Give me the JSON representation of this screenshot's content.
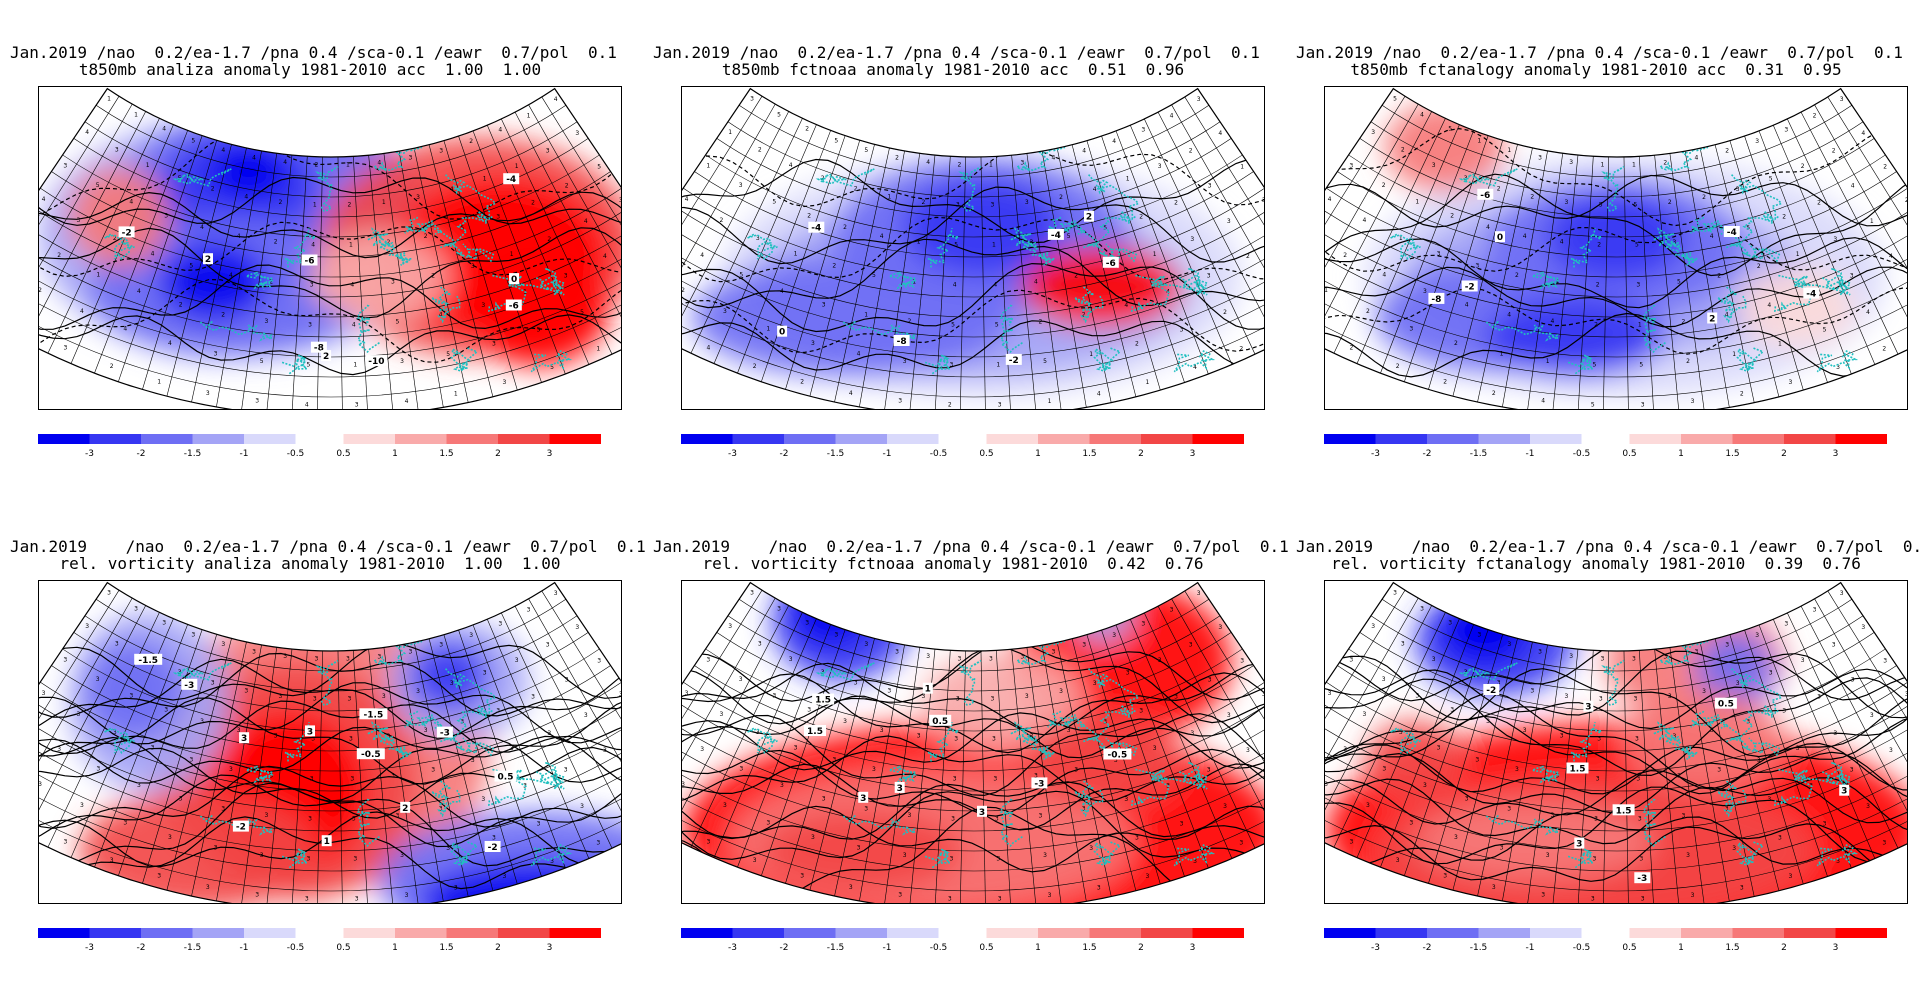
{
  "panels": [
    {
      "line1": "Jan.2019 /nao  0.2/ea-1.7 /pna 0.4 /sca-0.1 /eawr  0.7/pol  0.1",
      "line2": "t850mb analiza anomaly 1981-2010 acc  1.00  1.00",
      "kind": "t850",
      "variant": "a"
    },
    {
      "line1": "Jan.2019 /nao  0.2/ea-1.7 /pna 0.4 /sca-0.1 /eawr  0.7/pol  0.1",
      "line2": "t850mb fctnoaa anomaly 1981-2010 acc  0.51  0.96",
      "kind": "t850",
      "variant": "b"
    },
    {
      "line1": "Jan.2019 /nao  0.2/ea-1.7 /pna 0.4 /sca-0.1 /eawr  0.7/pol  0.1",
      "line2": "t850mb fctanalogy anomaly 1981-2010 acc  0.31  0.95",
      "kind": "t850",
      "variant": "c"
    },
    {
      "line1": "Jan.2019    /nao  0.2/ea-1.7 /pna 0.4 /sca-0.1 /eawr  0.7/pol  0.1",
      "line2": "rel. vorticity analiza anomaly 1981-2010  1.00  1.00",
      "kind": "vort",
      "variant": "a"
    },
    {
      "line1": "Jan.2019    /nao  0.2/ea-1.7 /pna 0.4 /sca-0.1 /eawr  0.7/pol  0.1",
      "line2": "rel. vorticity fctnoaa anomaly 1981-2010  0.42  0.76",
      "kind": "vort",
      "variant": "b"
    },
    {
      "line1": "Jan.2019    /nao  0.2/ea-1.7 /pna 0.4 /sca-0.1 /eawr  0.7/pol  0.1",
      "line2": "rel. vorticity fctanalogy anomaly 1981-2010  0.39  0.76",
      "kind": "vort",
      "variant": "c"
    }
  ],
  "colorbar": {
    "labels": [
      "-3",
      "-2",
      "-1.5",
      "-1",
      "-0.5",
      "0.5",
      "1",
      "1.5",
      "2",
      "3"
    ],
    "neg_colors": [
      "#0000f0",
      "#3636f2",
      "#6e6ef4",
      "#a4a4f6",
      "#d9d9fb"
    ],
    "pos_colors": [
      "#fcdada",
      "#f9aaaa",
      "#f67878",
      "#f24646",
      "#ff0000"
    ]
  },
  "contour_labels": {
    "t850": {
      "a": [
        "-10",
        "-8",
        "-6",
        "-4",
        "-2",
        "-6",
        "2",
        "0",
        "2"
      ],
      "b": [
        "-8",
        "-6",
        "-4",
        "-2",
        "0",
        "2",
        "-4"
      ],
      "c": [
        "-8",
        "-6",
        "-4",
        "-2",
        "0",
        "2",
        "-4"
      ]
    },
    "vort": {
      "a": [
        "0.5",
        "1",
        "3",
        "-3",
        "-2",
        "-1.5",
        "-3",
        "-2",
        "-1.5",
        "-0.5",
        "2",
        "3"
      ],
      "b": [
        "-3",
        "-0.5",
        "1.5",
        "1",
        "0.5",
        "3",
        "3",
        "1.5",
        "3"
      ],
      "c": [
        "1.5",
        "-2",
        "0.5",
        "3",
        "1.5",
        "3",
        "-3",
        "3"
      ]
    }
  },
  "colors": {
    "coast": "#20c0c0",
    "frame": "#000000",
    "grid": "#000000"
  }
}
